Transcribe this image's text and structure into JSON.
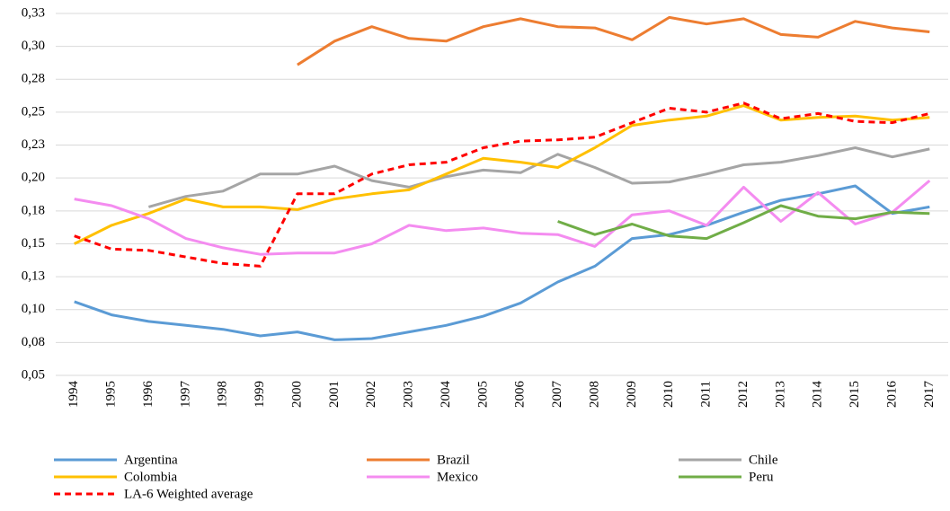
{
  "chart_data": {
    "type": "line",
    "categories": [
      "1994",
      "1995",
      "1996",
      "1997",
      "1998",
      "1999",
      "2000",
      "2001",
      "2002",
      "2003",
      "2004",
      "2005",
      "2006",
      "2007",
      "2008",
      "2009",
      "2010",
      "2011",
      "2012",
      "2013",
      "2014",
      "2015",
      "2016",
      "2017"
    ],
    "ylim": [
      0.05,
      0.325
    ],
    "yticks": [
      {
        "value": 0.05,
        "label": "0,05"
      },
      {
        "value": 0.075,
        "label": "0,08"
      },
      {
        "value": 0.1,
        "label": "0,10"
      },
      {
        "value": 0.125,
        "label": "0,13"
      },
      {
        "value": 0.15,
        "label": "0,15"
      },
      {
        "value": 0.175,
        "label": "0,18"
      },
      {
        "value": 0.2,
        "label": "0,20"
      },
      {
        "value": 0.225,
        "label": "0,23"
      },
      {
        "value": 0.25,
        "label": "0,25"
      },
      {
        "value": 0.275,
        "label": "0,28"
      },
      {
        "value": 0.3,
        "label": "0,30"
      },
      {
        "value": 0.325,
        "label": "0,33"
      }
    ],
    "grid": true,
    "legend": "bottom",
    "series": [
      {
        "name": "Argentina",
        "color": "#5b9bd5",
        "values": [
          0.106,
          0.096,
          0.091,
          0.088,
          0.085,
          0.08,
          0.083,
          0.077,
          0.078,
          0.083,
          0.088,
          0.095,
          0.105,
          0.121,
          0.133,
          0.154,
          0.157,
          0.164,
          0.174,
          0.183,
          0.188,
          0.194,
          0.173,
          0.178
        ]
      },
      {
        "name": "Brazil",
        "color": "#ed7d31",
        "values": [
          null,
          null,
          null,
          null,
          null,
          null,
          0.286,
          0.304,
          0.315,
          0.306,
          0.304,
          0.315,
          0.321,
          0.315,
          0.314,
          0.305,
          0.322,
          0.317,
          0.321,
          0.309,
          0.307,
          0.319,
          0.314,
          0.311
        ]
      },
      {
        "name": "Chile",
        "color": "#a5a5a5",
        "values": [
          null,
          null,
          0.178,
          0.186,
          0.19,
          0.203,
          0.203,
          0.209,
          0.198,
          0.193,
          0.201,
          0.206,
          0.204,
          0.218,
          0.208,
          0.196,
          0.197,
          0.203,
          0.21,
          0.212,
          0.217,
          0.223,
          0.216,
          0.222
        ]
      },
      {
        "name": "Colombia",
        "color": "#ffc000",
        "values": [
          0.15,
          0.164,
          0.173,
          0.184,
          0.178,
          0.178,
          0.176,
          0.184,
          0.188,
          0.191,
          0.203,
          0.215,
          0.212,
          0.208,
          0.223,
          0.24,
          0.244,
          0.247,
          0.255,
          0.244,
          0.246,
          0.247,
          0.244,
          0.246
        ]
      },
      {
        "name": "Mexico",
        "color": "#f48cf0",
        "values": [
          0.184,
          0.179,
          0.169,
          0.154,
          0.147,
          0.142,
          0.143,
          0.143,
          0.15,
          0.164,
          0.16,
          0.162,
          0.158,
          0.157,
          0.148,
          0.172,
          0.175,
          0.164,
          0.193,
          0.167,
          0.189,
          0.165,
          0.174,
          0.198
        ]
      },
      {
        "name": "Peru",
        "color": "#70ad47",
        "values": [
          null,
          null,
          null,
          null,
          null,
          null,
          null,
          null,
          null,
          null,
          null,
          null,
          null,
          0.167,
          0.157,
          0.165,
          0.156,
          0.154,
          0.166,
          0.179,
          0.171,
          0.169,
          0.174,
          0.173
        ]
      },
      {
        "name": "LA-6 Weighted average",
        "color": "#ff0000",
        "dashed": true,
        "values": [
          0.156,
          0.146,
          0.145,
          0.14,
          0.135,
          0.133,
          0.188,
          0.188,
          0.203,
          0.21,
          0.212,
          0.223,
          0.228,
          0.229,
          0.231,
          0.242,
          0.253,
          0.25,
          0.257,
          0.245,
          0.249,
          0.243,
          0.242,
          0.249
        ]
      }
    ]
  }
}
